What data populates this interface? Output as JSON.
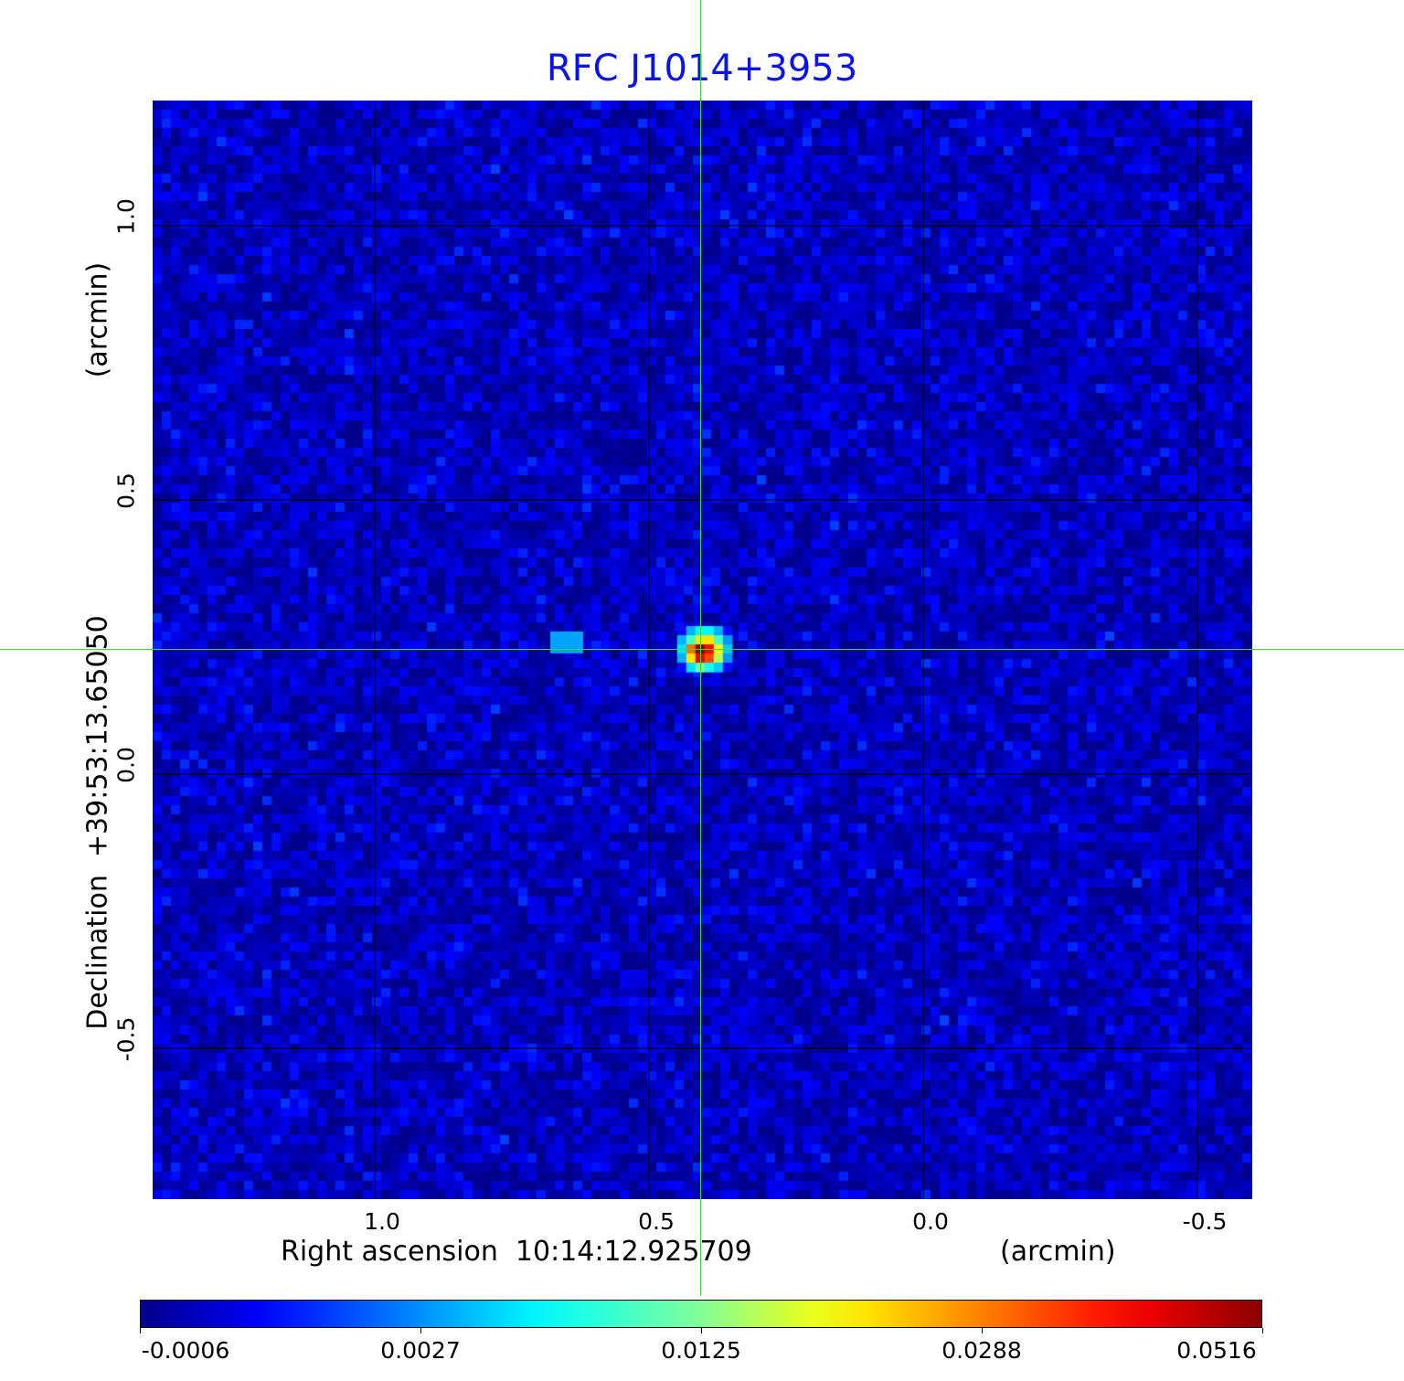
{
  "chart_data": {
    "type": "heatmap",
    "title": "RFC J1014+3953",
    "xlabel": "Right ascension  10:14:12.925709",
    "xunit": "(arcmin)",
    "ylabel": "Declination  +39:53:13.65050",
    "yunit": "(arcmin)",
    "xlim": [
      1.405,
      -0.6
    ],
    "ylim": [
      -0.775,
      1.228
    ],
    "x_ticks": [
      {
        "value": 1.0,
        "label": "1.0"
      },
      {
        "value": 0.5,
        "label": "0.5"
      },
      {
        "value": 0.0,
        "label": "0.0"
      },
      {
        "value": -0.5,
        "label": "-0.5"
      }
    ],
    "y_ticks": [
      {
        "value": 1.0,
        "label": "1.0"
      },
      {
        "value": 0.5,
        "label": "0.5"
      },
      {
        "value": 0.0,
        "label": "0.0"
      },
      {
        "value": -0.5,
        "label": "-0.5"
      }
    ],
    "grid": true,
    "crosshair": {
      "x": 0.407,
      "y": 0.228
    },
    "colormap": "jet",
    "colorbar": {
      "placement": "bottom",
      "ticks": [
        "-0.0006",
        "0.0027",
        "0.0125",
        "0.0288",
        "0.0516"
      ],
      "tick_values": [
        -0.0006,
        0.0027,
        0.0125,
        0.0288,
        0.0516
      ]
    },
    "background_level": 0.0,
    "background_noise": 0.0012,
    "source": {
      "center_x": 0.407,
      "center_y": 0.228,
      "pixel_arcmin": 0.0167,
      "peak": 0.0516,
      "grid": [
        [
          0.001,
          0.004,
          0.007,
          0.007,
          0.004,
          0.001
        ],
        [
          0.004,
          0.01,
          0.022,
          0.022,
          0.01,
          0.003
        ],
        [
          0.006,
          0.03,
          0.0516,
          0.04,
          0.02,
          0.005
        ],
        [
          0.004,
          0.022,
          0.042,
          0.034,
          0.016,
          0.003
        ],
        [
          0.001,
          0.006,
          0.012,
          0.008,
          0.005,
          0.001
        ]
      ]
    },
    "secondary_source": {
      "center_x": 0.65,
      "center_y": 0.24,
      "value": 0.0035
    }
  }
}
